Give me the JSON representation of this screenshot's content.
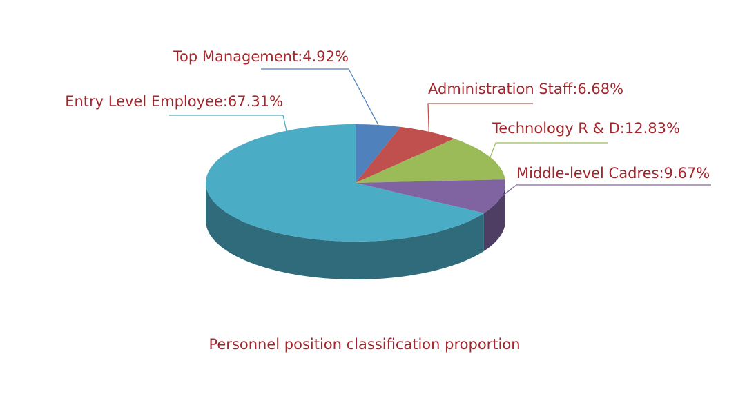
{
  "chart_data": {
    "type": "pie",
    "title": "Personnel position classification proportion",
    "values": [
      4.92,
      6.68,
      12.83,
      9.67,
      67.31
    ],
    "value_labels": [
      "Top Management:4.92%",
      "Administration Staff:6.68%",
      "Technology R & D:12.83%",
      "Middle-level Cadres:9.67%",
      "Entry Level Employee:67.31%"
    ],
    "colors": [
      "#4f81bd",
      "#c0504d",
      "#9bbb59",
      "#8064a2",
      "#4bacc6"
    ]
  }
}
